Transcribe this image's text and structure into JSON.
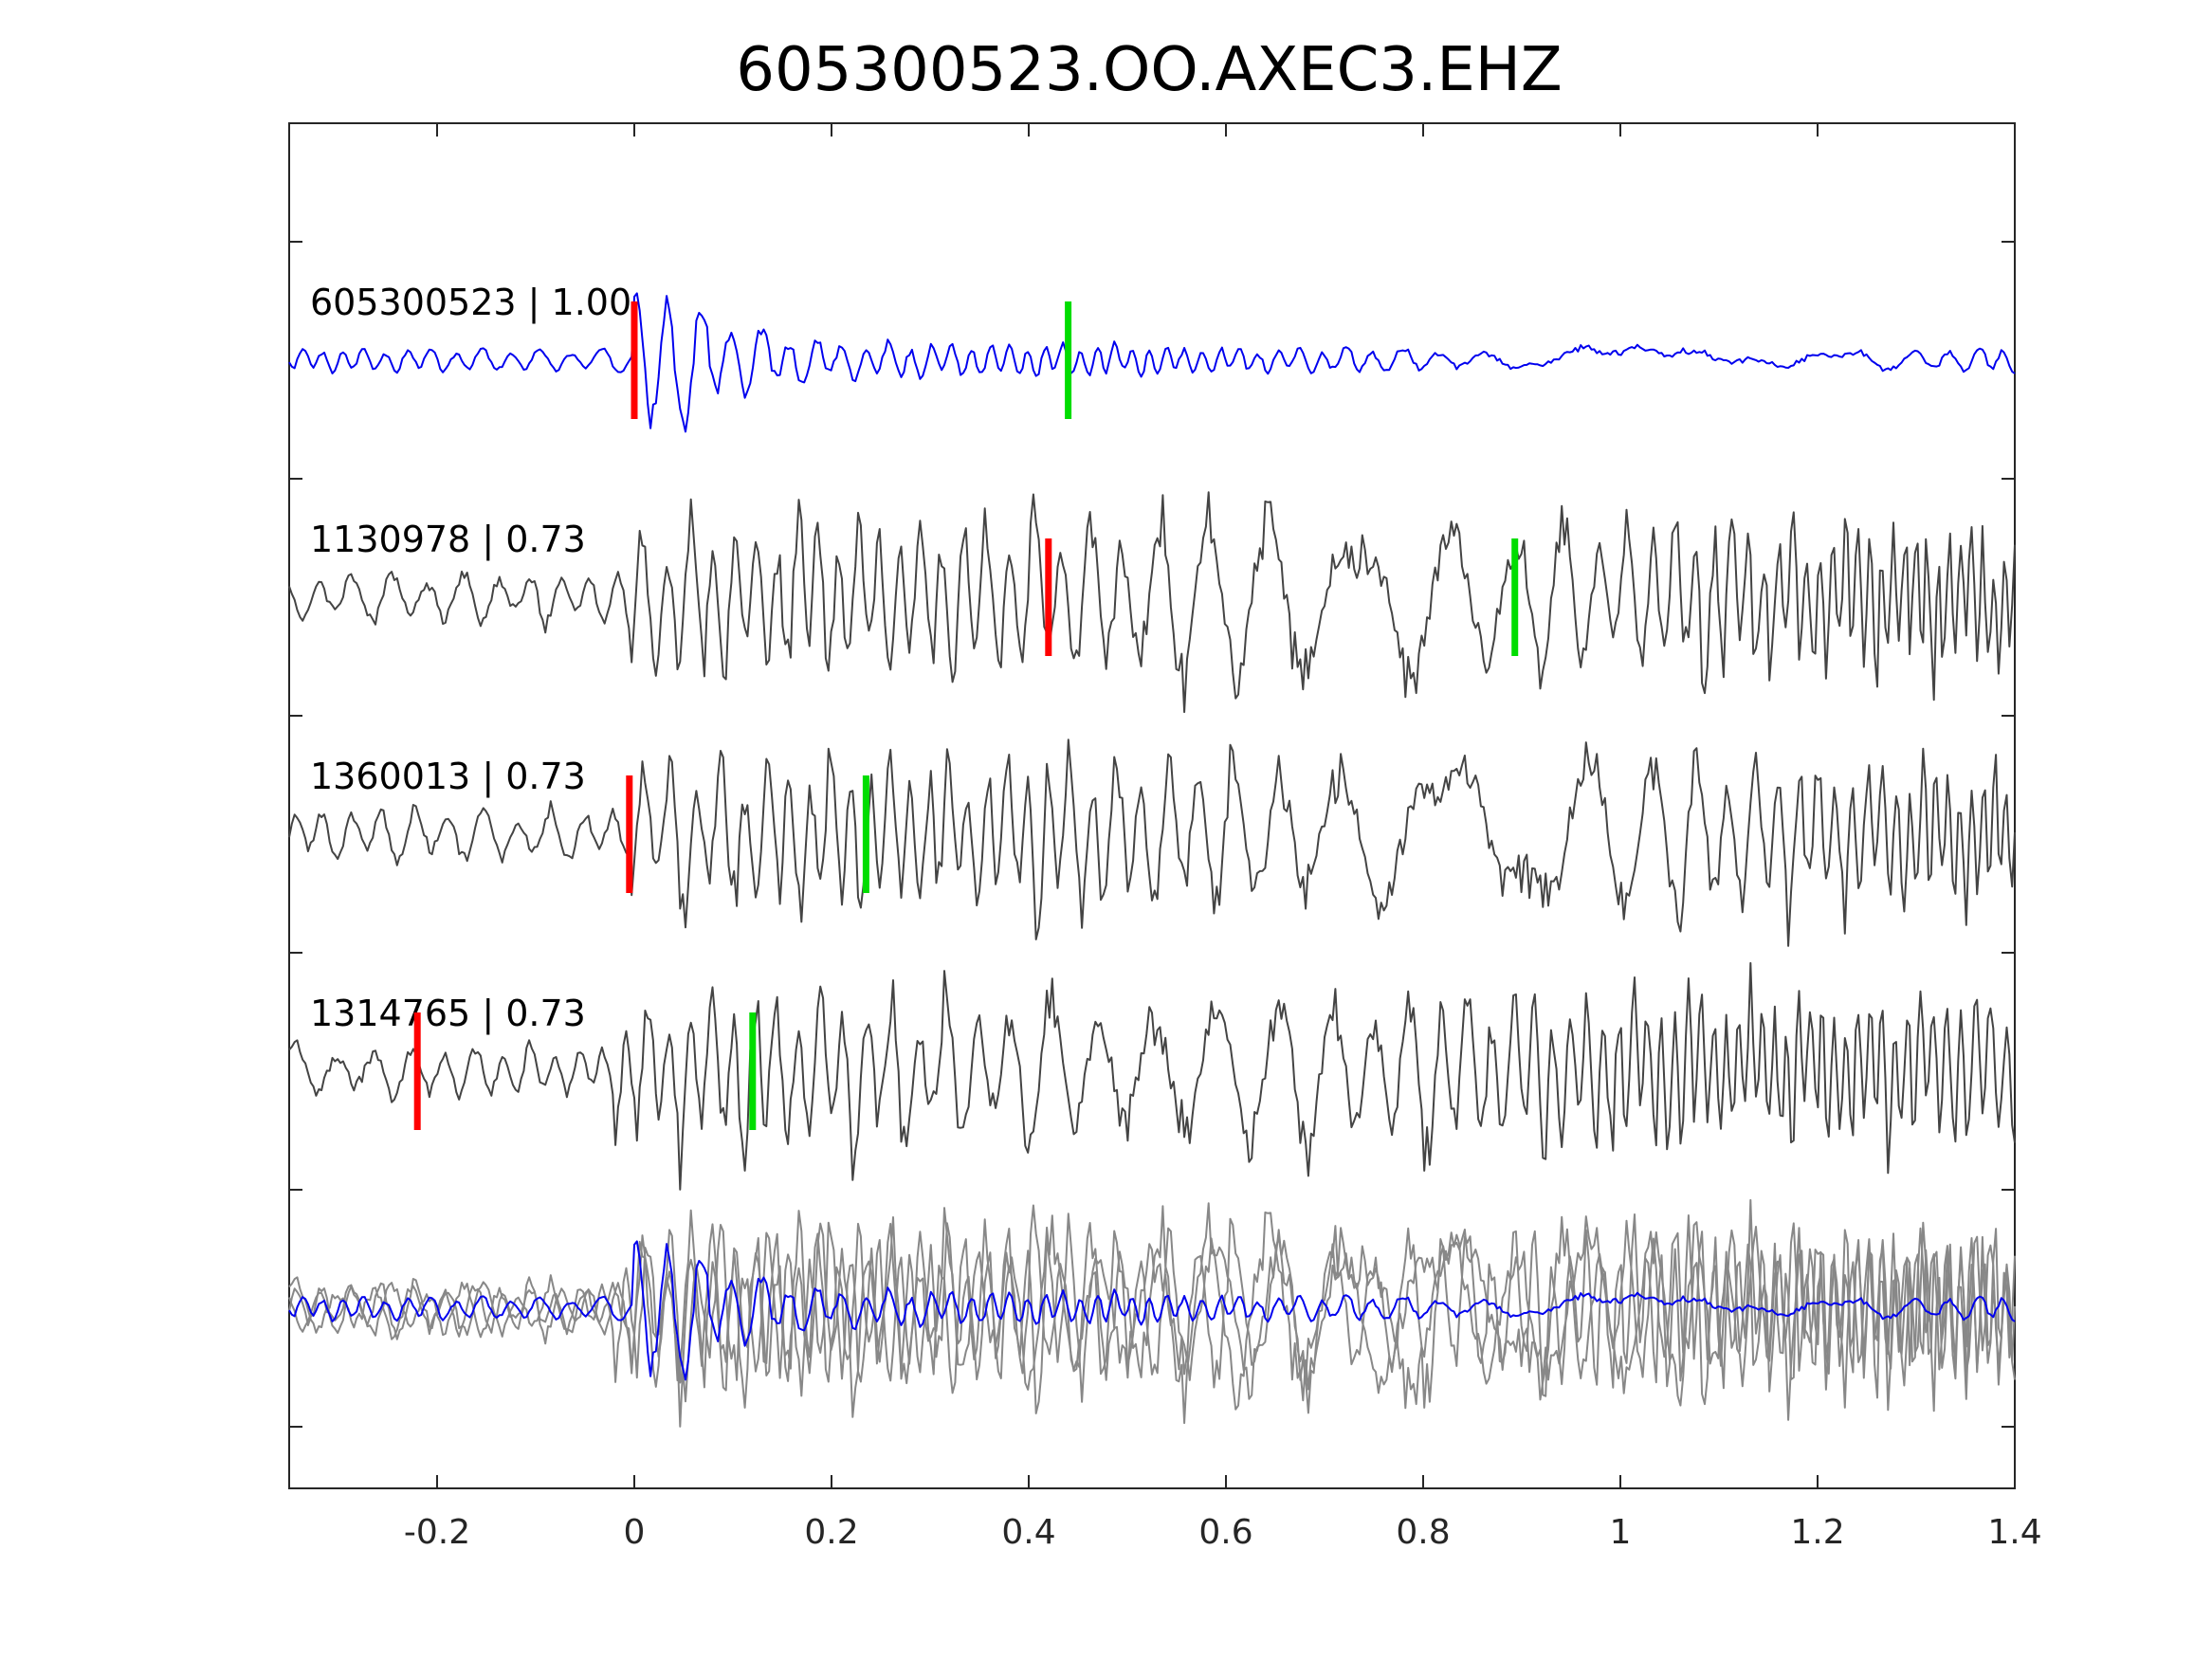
{
  "chart_data": {
    "type": "line",
    "title": "605300523.OO.AXEC3.EHZ",
    "xlim": [
      -0.35,
      1.4
    ],
    "x_ticks": [
      "-0.2",
      "0",
      "0.2",
      "0.4",
      "0.6",
      "0.8",
      "1",
      "1.2",
      "1.4"
    ],
    "x_tick_values": [
      -0.2,
      0,
      0.2,
      0.4,
      0.6,
      0.8,
      1,
      1.2,
      1.4
    ],
    "grid": false,
    "colors": {
      "main_trace": "#0000ee",
      "other_trace": "#444444",
      "overlay_gray": "#888888",
      "p_pick": "#ff0000",
      "s_pick": "#00dd00"
    },
    "traces": [
      {
        "label": "605300523 | 1.00",
        "id": "605300523",
        "cc": "1.00",
        "color": "main",
        "p_pick": 0.0,
        "s_pick": 0.44,
        "onset": 0.0,
        "seed": 3
      },
      {
        "label": "1130978 | 0.73",
        "id": "1130978",
        "cc": "0.73",
        "color": "other",
        "p_pick": 0.42,
        "s_pick": 0.893,
        "onset": -0.01,
        "seed": 11
      },
      {
        "label": "1360013 | 0.73",
        "id": "1360013",
        "cc": "0.73",
        "color": "other",
        "p_pick": -0.005,
        "s_pick": 0.235,
        "onset": -0.005,
        "seed": 23
      },
      {
        "label": "1314765 | 0.73",
        "id": "1314765",
        "cc": "0.73",
        "color": "other",
        "p_pick": -0.22,
        "s_pick": 0.12,
        "onset": -0.02,
        "seed": 37
      }
    ],
    "overlay_stack": true
  }
}
